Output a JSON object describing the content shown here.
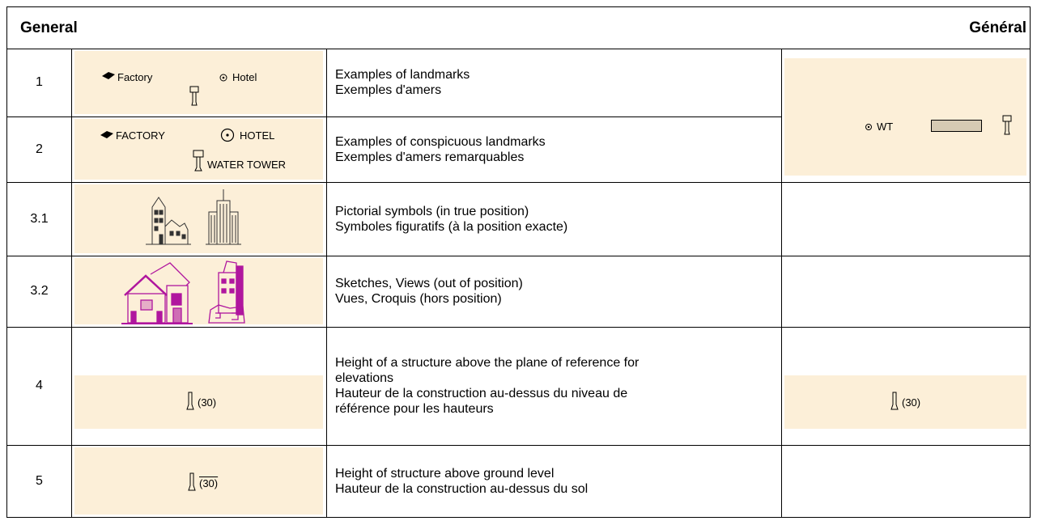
{
  "header": {
    "title_left": "General",
    "title_right": "Général"
  },
  "rows": [
    {
      "number": "1",
      "symbol_labels": [
        "Factory",
        "Hotel"
      ],
      "description": [
        "Examples of landmarks",
        "Exemples d'amers"
      ]
    },
    {
      "number": "2",
      "symbol_labels": [
        "FACTORY",
        "HOTEL",
        "WATER TOWER"
      ],
      "description": [
        "Examples of conspicuous landmarks",
        "Exemples d'amers remarquables"
      ]
    },
    {
      "number": "3.1",
      "description": [
        "Pictorial symbols (in true position)",
        "Symboles figuratifs (à la position exacte)"
      ]
    },
    {
      "number": "3.2",
      "description": [
        "Sketches, Views (out of position)",
        "Vues, Croquis (hors position)"
      ]
    },
    {
      "number": "4",
      "symbol_labels": [
        "(30)"
      ],
      "description": [
        "Height of a structure above the plane of reference for",
        "elevations",
        "Hauteur de la construction au-dessus du niveau de",
        "référence pour les hauteurs"
      ],
      "right_labels": [
        "(30)"
      ]
    },
    {
      "number": "5",
      "symbol_labels": [
        "(30)"
      ],
      "description": [
        "Height of structure above ground level",
        "Hauteur de la construction au-dessus du sol"
      ]
    }
  ],
  "merged_right_1_2": {
    "labels": [
      "WT"
    ]
  }
}
